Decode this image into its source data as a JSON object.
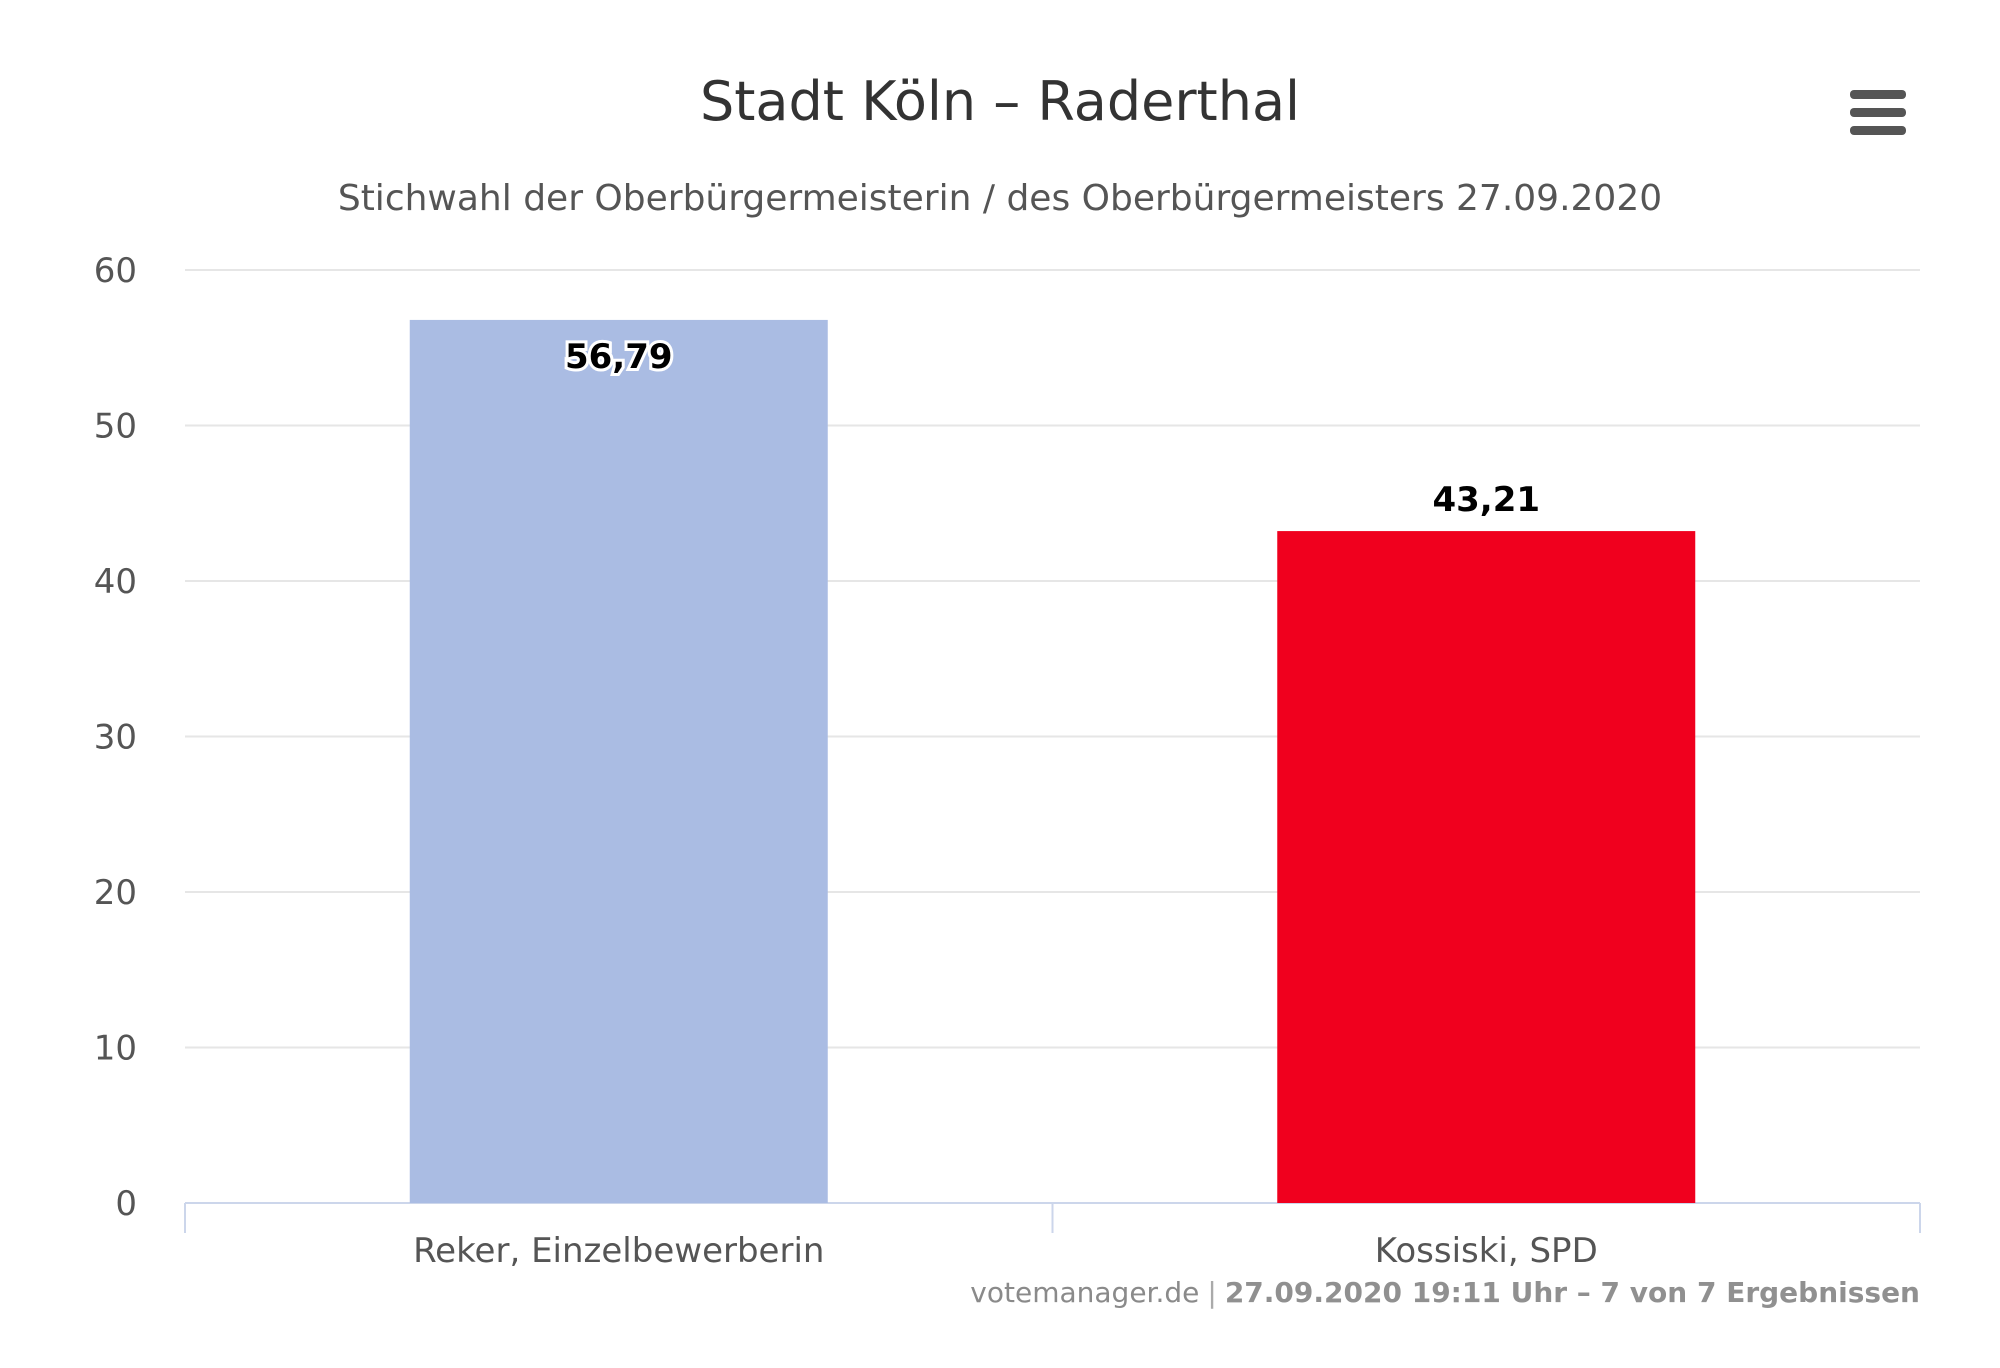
{
  "chart_data": {
    "type": "bar",
    "title": "Stadt Köln – Raderthal",
    "subtitle": "Stichwahl der Oberbürgermeisterin / des Oberbürgermeisters 27.09.2020",
    "categories": [
      "Reker, Einzelbewerberin",
      "Kossiski, SPD"
    ],
    "values": [
      56.79,
      43.21
    ],
    "data_labels": [
      "56,79",
      "43,21"
    ],
    "colors": [
      "#aabce3",
      "#f0001e"
    ],
    "ylim": [
      0,
      60
    ],
    "yticks": [
      0,
      10,
      20,
      30,
      40,
      50,
      60
    ],
    "grid": true,
    "legend": "none"
  },
  "credits": {
    "source": "votemanager.de",
    "separator": "|",
    "info": "27.09.2020 19:11 Uhr – 7 von 7 Ergebnissen"
  },
  "icons": {
    "menu": "hamburger-menu-icon"
  }
}
